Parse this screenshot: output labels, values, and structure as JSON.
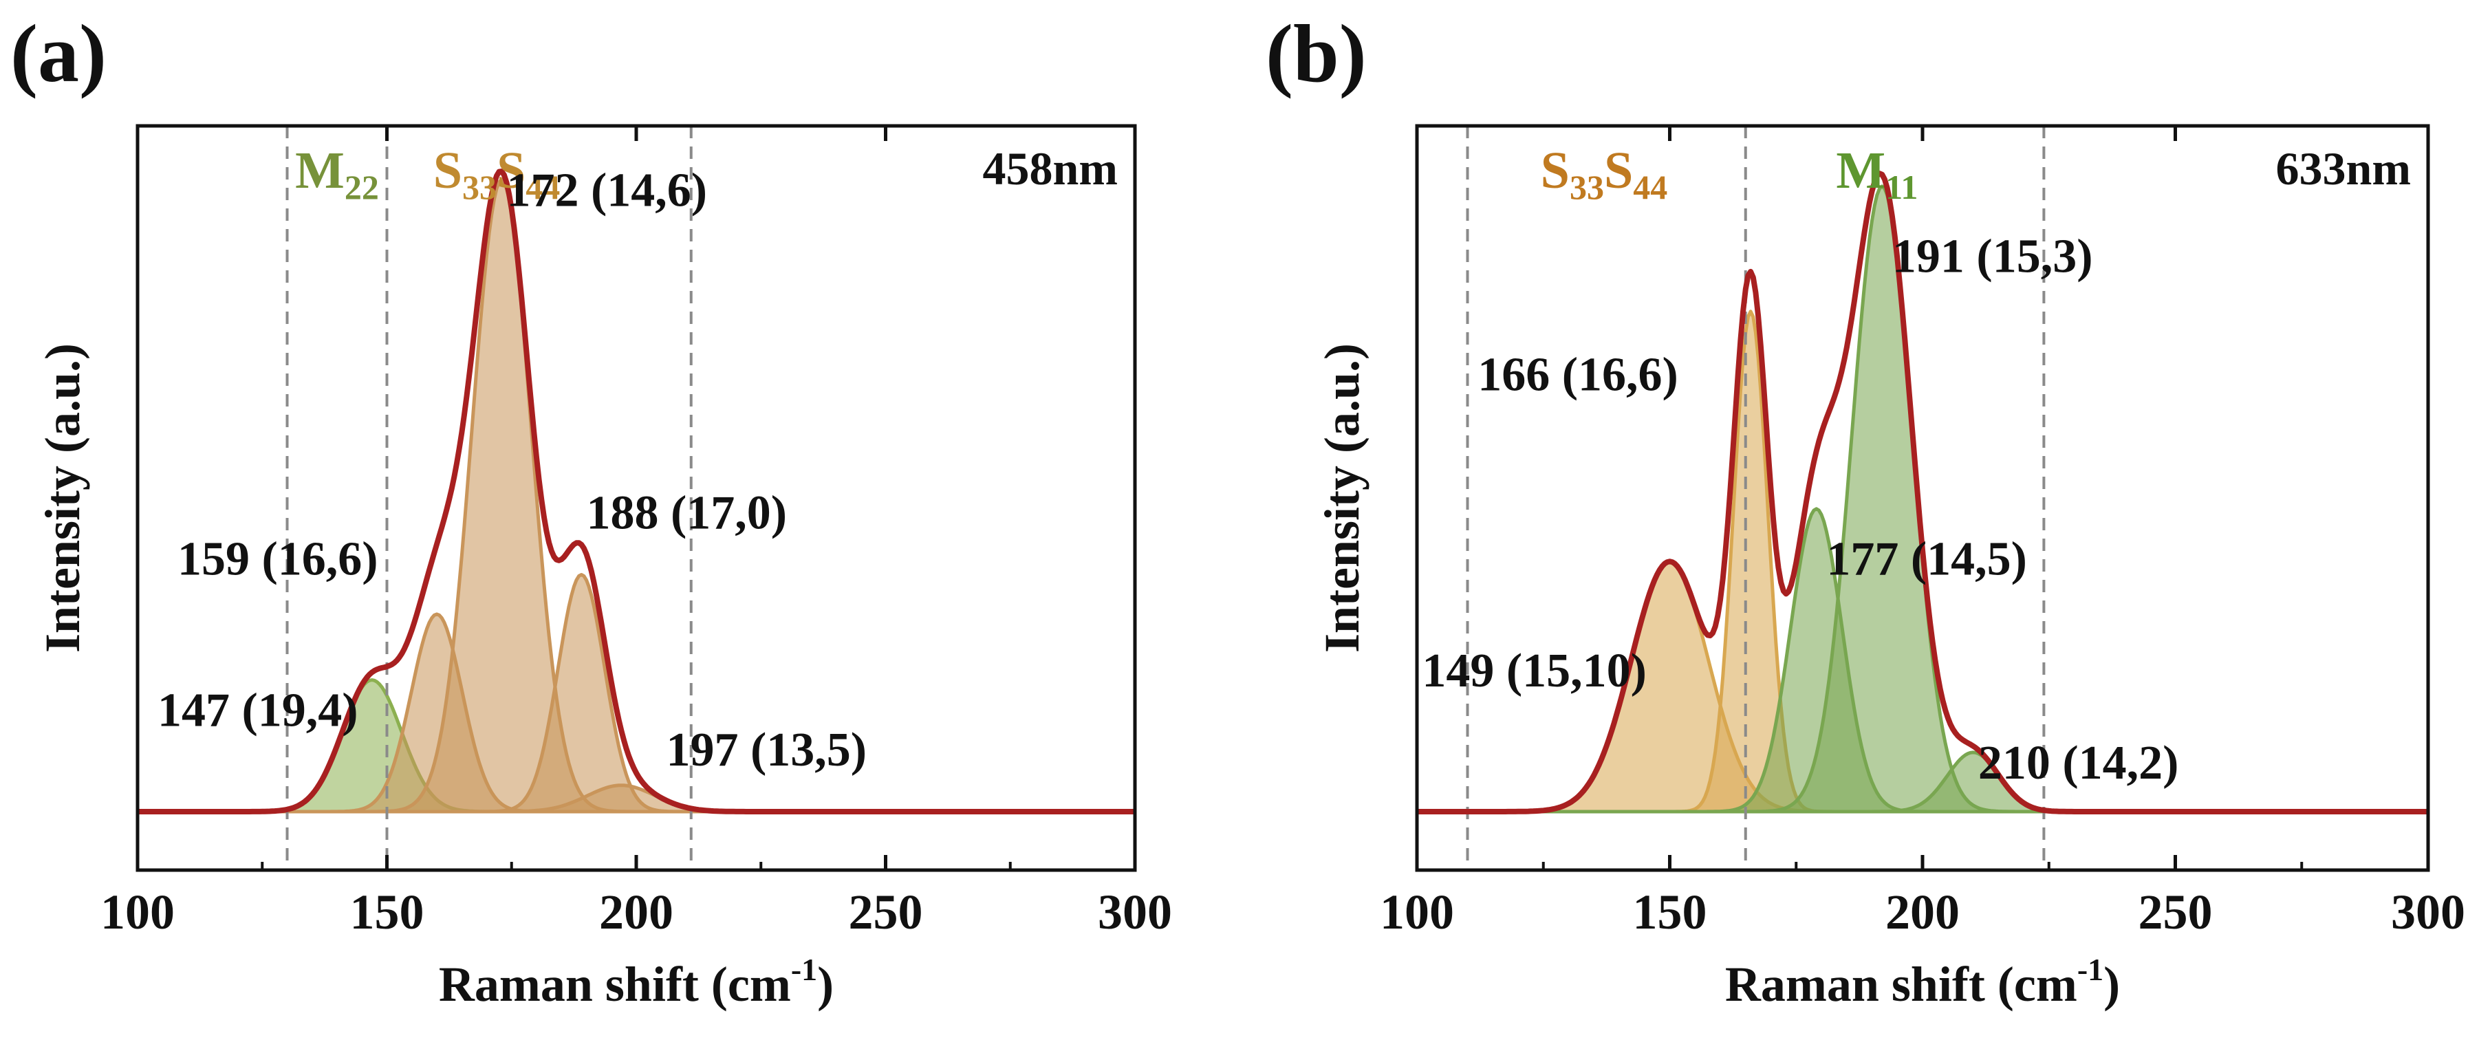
{
  "chart_data": [
    {
      "type": "line",
      "panel_label": "(a)",
      "laser": "458nm",
      "xlabel": "Raman shift (cm",
      "xlabel_sup": "-1",
      "xlabel_end": ")",
      "ylabel": "Intensity (a.u.)",
      "xlim": [
        100,
        300
      ],
      "ylim": [
        0,
        1.09
      ],
      "xticks": [
        "100",
        "150",
        "200",
        "250",
        "300"
      ],
      "dashed_lines": [
        130,
        150,
        211
      ],
      "region_labels": [
        {
          "main": "M",
          "sub": "22",
          "x": 140,
          "color": "#77923a"
        },
        {
          "main": "S",
          "sub": "33",
          "main2": "S",
          "sub2": "44",
          "x": 172,
          "color": "#c08a30"
        }
      ],
      "components": [
        {
          "name": "147 (19,4)",
          "center": 147,
          "amp": 0.2,
          "fwhm": 14,
          "color": "#8cb050"
        },
        {
          "name": "159 (16,6)",
          "center": 160,
          "amp": 0.3,
          "fwhm": 12,
          "color": "#c9955a"
        },
        {
          "name": "172 (14,6)",
          "center": 173,
          "amp": 0.96,
          "fwhm": 14,
          "color": "#c9955a"
        },
        {
          "name": "188 (17,0)",
          "center": 189,
          "amp": 0.36,
          "fwhm": 11,
          "color": "#c9955a"
        },
        {
          "name": "197 (13,5)",
          "center": 197,
          "amp": 0.04,
          "fwhm": 16,
          "color": "#c9955a"
        }
      ],
      "peak_labels": [
        {
          "text": "172 (14,6)",
          "x": 174,
          "y": 0.92
        },
        {
          "text": "188 (17,0)",
          "x": 190,
          "y": 0.43
        },
        {
          "text": "159 (16,6)",
          "x": 108,
          "y": 0.36
        },
        {
          "text": "147 (19,4)",
          "x": 104,
          "y": 0.13
        },
        {
          "text": "197 (13,5)",
          "x": 206,
          "y": 0.07
        }
      ]
    },
    {
      "type": "line",
      "panel_label": "(b)",
      "laser": "633nm",
      "xlabel": "Raman shift (cm",
      "xlabel_sup": "-1",
      "xlabel_end": ")",
      "ylabel": "Intensity (a.u.)",
      "xlim": [
        100,
        300
      ],
      "ylim": [
        0,
        1.09
      ],
      "xticks": [
        "100",
        "150",
        "200",
        "250",
        "300"
      ],
      "dashed_lines": [
        110,
        165,
        224
      ],
      "region_labels": [
        {
          "main": "S",
          "sub": "33",
          "main2": "S",
          "sub2": "44",
          "x": 137,
          "color": "#c07a20"
        },
        {
          "main": "M",
          "sub": "11",
          "x": 191,
          "color": "#5e9630"
        }
      ],
      "components": [
        {
          "name": "149 (15,10)",
          "center": 150,
          "amp": 0.38,
          "fwhm": 18,
          "color": "#d8a750"
        },
        {
          "name": "166 (16,6)",
          "center": 166,
          "amp": 0.76,
          "fwhm": 8,
          "color": "#d8a750"
        },
        {
          "name": "177 (14,5)",
          "center": 179,
          "amp": 0.46,
          "fwhm": 12,
          "color": "#79a650"
        },
        {
          "name": "191 (15,3)",
          "center": 192,
          "amp": 0.95,
          "fwhm": 14,
          "color": "#79a650"
        },
        {
          "name": "210 (14,2)",
          "center": 210,
          "amp": 0.09,
          "fwhm": 12,
          "color": "#79a650"
        }
      ],
      "peak_labels": [
        {
          "text": "191 (15,3)",
          "x": 194,
          "y": 0.82
        },
        {
          "text": "166 (16,6)",
          "x": 112,
          "y": 0.64
        },
        {
          "text": "177 (14,5)",
          "x": 181,
          "y": 0.36
        },
        {
          "text": "149 (15,10)",
          "x": 101,
          "y": 0.19
        },
        {
          "text": "210 (14,2)",
          "x": 211,
          "y": 0.05
        }
      ]
    }
  ],
  "colors": {
    "envelope": "#a82020",
    "axis": "#111111",
    "dashed": "#8a8a8a"
  }
}
